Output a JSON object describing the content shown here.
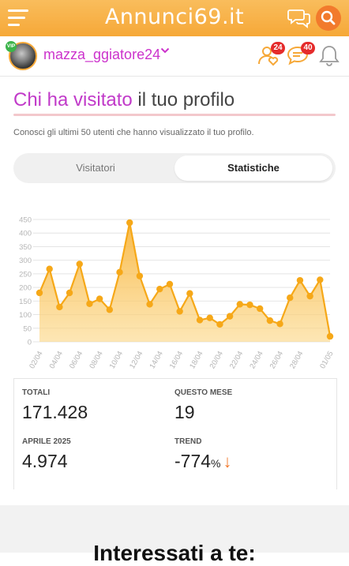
{
  "app": {
    "logo": "Annunci69.it"
  },
  "user": {
    "name": "mazza_ggiatore24",
    "vip_label": "VIP",
    "badges": {
      "likes": "24",
      "messages": "40"
    }
  },
  "page": {
    "title_highlight": "Chi ha visitato",
    "title_rest": " il tuo profilo",
    "description": "Conosci gli ultimi 50 utenti che hanno visualizzato il tuo profilo.",
    "tabs": [
      {
        "label": "Visitatori",
        "active": false
      },
      {
        "label": "Statistiche",
        "active": true
      }
    ]
  },
  "chart_data": {
    "type": "area",
    "title": "",
    "xlabel": "",
    "ylabel": "",
    "ylim": [
      0,
      450
    ],
    "yticks": [
      0,
      50,
      100,
      150,
      200,
      250,
      300,
      350,
      400,
      450
    ],
    "grid": true,
    "x_tick_labels": [
      "02/04",
      "04/04",
      "06/04",
      "08/04",
      "10/04",
      "12/04",
      "14/04",
      "16/04",
      "18/04",
      "20/04",
      "22/04",
      "24/04",
      "26/04",
      "28/04",
      "01/05"
    ],
    "x": [
      "02/04",
      "03/04",
      "04/04",
      "05/04",
      "06/04",
      "07/04",
      "08/04",
      "09/04",
      "10/04",
      "11/04",
      "12/04",
      "13/04",
      "14/04",
      "15/04",
      "16/04",
      "17/04",
      "18/04",
      "19/04",
      "20/04",
      "21/04",
      "22/04",
      "23/04",
      "24/04",
      "25/04",
      "26/04",
      "27/04",
      "28/04",
      "29/04",
      "30/04",
      "01/05"
    ],
    "values": [
      180,
      268,
      128,
      180,
      286,
      140,
      158,
      118,
      256,
      438,
      242,
      138,
      194,
      212,
      112,
      178,
      80,
      88,
      64,
      94,
      138,
      136,
      122,
      78,
      66,
      162,
      226,
      168,
      228,
      20
    ],
    "color": "#f6a818"
  },
  "stats": {
    "total": {
      "label": "TOTALI",
      "value": "171.428"
    },
    "month": {
      "label": "QUESTO MESE",
      "value": "19"
    },
    "april": {
      "label": "APRILE 2025",
      "value": "4.974"
    },
    "trend": {
      "label": "TREND",
      "value": "-774",
      "unit": "%",
      "arrow": "↓"
    }
  },
  "next_section": {
    "title": "Interessati a te:"
  },
  "colors": {
    "brand": "#f6a838",
    "accent": "#f27a2c",
    "username": "#cc33cc",
    "badge": "#e52b2b"
  }
}
